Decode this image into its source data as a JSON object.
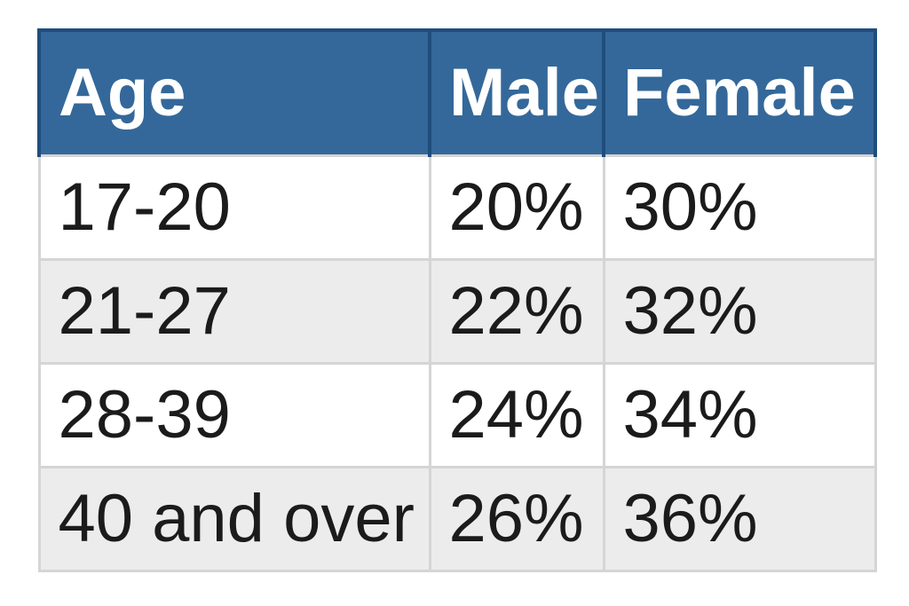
{
  "table": {
    "headers": [
      "Age",
      "Male",
      "Female"
    ],
    "rows": [
      [
        "17-20",
        "20%",
        "30%"
      ],
      [
        "21-27",
        "22%",
        "32%"
      ],
      [
        "28-39",
        "24%",
        "34%"
      ],
      [
        "40 and over",
        "26%",
        "36%"
      ]
    ]
  },
  "chart_data": {
    "type": "table",
    "columns": [
      "Age",
      "Male",
      "Female"
    ],
    "categories": [
      "17-20",
      "21-27",
      "28-39",
      "40 and over"
    ],
    "series": [
      {
        "name": "Male",
        "values": [
          20,
          22,
          24,
          26
        ]
      },
      {
        "name": "Female",
        "values": [
          30,
          32,
          34,
          36
        ]
      }
    ],
    "unit": "%",
    "layout": {
      "header_position": "top",
      "zebra_striping": true,
      "grid": true
    }
  },
  "colors": {
    "header_bg": "#34689a",
    "header_border": "#1f4d7c",
    "header_text": "#ffffff",
    "row_bg": "#ffffff",
    "row_alt_bg": "#ececec",
    "body_border": "#d5d5d5",
    "body_text": "#1b1b1b",
    "page_bg": "#ffffff"
  }
}
